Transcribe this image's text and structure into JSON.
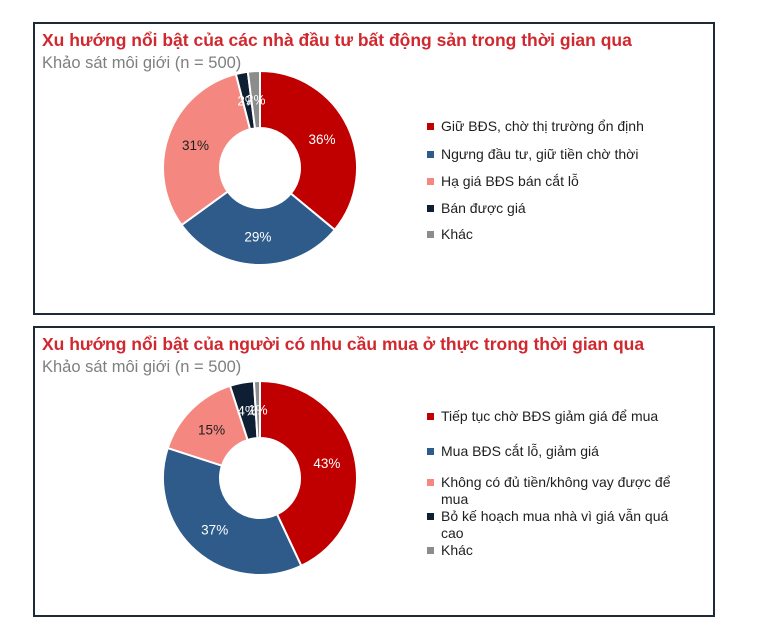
{
  "chart_data": [
    {
      "type": "pie",
      "donut": true,
      "title": "Xu hướng nổi bật của các nhà đầu tư bất động sản trong thời gian qua",
      "subtitle": "Khảo sát môi giới (n = 500)",
      "series": [
        {
          "name": "Giữ BĐS, chờ thị trường ổn định",
          "value": 36,
          "label": "36%",
          "color": "#c00000"
        },
        {
          "name": "Ngưng đầu tư, giữ tiền chờ thời",
          "value": 29,
          "label": "29%",
          "color": "#2e5b8a"
        },
        {
          "name": "Hạ giá BĐS bán cắt lỗ",
          "value": 31,
          "label": "31%",
          "color": "#f4877f"
        },
        {
          "name": "Bán được giá",
          "value": 2,
          "label": "2%",
          "color": "#0f1f33"
        },
        {
          "name": "Khác",
          "value": 2,
          "label": "2%",
          "color": "#8c8c8c"
        }
      ],
      "legend_position": "right"
    },
    {
      "type": "pie",
      "donut": true,
      "title": "Xu hướng nổi bật của người có nhu cầu mua ở thực trong thời gian qua",
      "subtitle": "Khảo sát môi giới (n = 500)",
      "series": [
        {
          "name": "Tiếp tục chờ BĐS giảm giá để mua",
          "value": 43,
          "label": "43%",
          "color": "#c00000"
        },
        {
          "name": "Mua BĐS cắt lỗ, giảm giá",
          "value": 37,
          "label": "37%",
          "color": "#2e5b8a"
        },
        {
          "name": "Không có đủ tiền/không vay được để mua",
          "value": 15,
          "label": "15%",
          "color": "#f4877f"
        },
        {
          "name": "Bỏ kế hoạch mua nhà vì giá vẫn quá cao",
          "value": 4,
          "label": "4%",
          "color": "#0f1f33"
        },
        {
          "name": "Khác",
          "value": 1,
          "label": "1%",
          "color": "#8c8c8c"
        }
      ],
      "legend_position": "right"
    }
  ]
}
